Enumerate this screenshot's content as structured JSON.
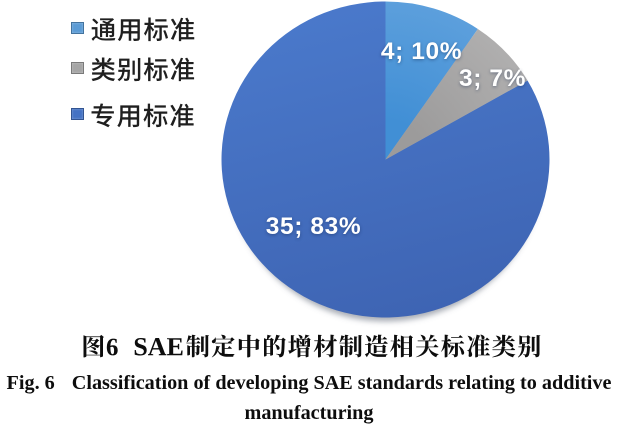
{
  "figure": {
    "background": "#ffffff",
    "caption_cn": "图 6　SAE 制定中的增材制造相关标准类别",
    "caption_en_prefix": "Fig. 6",
    "caption_en_line1": "Classification of developing SAE standards relating to additive",
    "caption_en_line2": "manufacturing"
  },
  "legend": {
    "position": "top-left",
    "items": [
      {
        "label": "通用标准",
        "color": "#5B9BD5"
      },
      {
        "label": "类别标准",
        "color": "#A5A5A5"
      },
      {
        "label": "专用标准",
        "color": "#4472C4"
      }
    ]
  },
  "chart_data": {
    "type": "pie",
    "title": "",
    "categories": [
      "通用标准",
      "类别标准",
      "专用标准"
    ],
    "values": [
      4,
      3,
      35
    ],
    "percentages": [
      10,
      7,
      83
    ],
    "slice_labels": [
      "4; 10%",
      "3; 7%",
      "35; 83%"
    ],
    "colors": [
      "#5B9BD5",
      "#A5A5A5",
      "#4472C4"
    ],
    "label_color": "#ffffff",
    "start_angle_deg": 0,
    "direction": "clockwise",
    "legend_position": "left"
  },
  "colors": {
    "s0_in": "#418FD5",
    "s0_out": "#5C9FDC",
    "s1_in": "#9C9B9B",
    "s1_out": "#AFAEAE",
    "s2_top": "#4A79CB",
    "s2_bot": "#3E64B3"
  }
}
